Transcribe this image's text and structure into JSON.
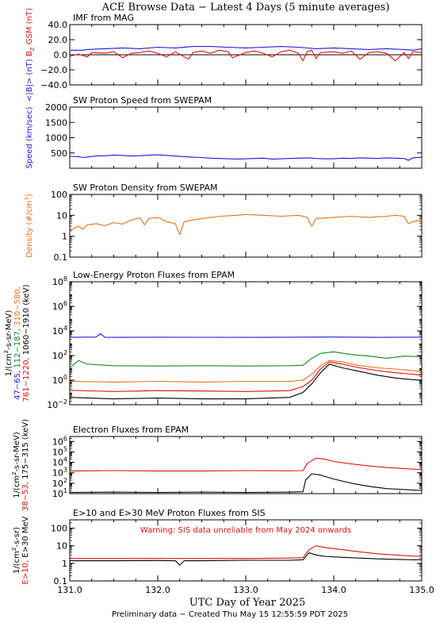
{
  "page": {
    "title": "ACE Browse Data − Latest 4 Days (5 minute averages)",
    "footer": "Preliminary data − Created Thu May 15 12:55:59 PDT 2025"
  },
  "colors": {
    "black": "#000000",
    "blue": "#1a1ad6",
    "red": "#e01010",
    "orange": "#e8701a",
    "green": "#108a20",
    "warning": "#e01010"
  },
  "chart_data": [
    {
      "id": "mag",
      "type": "line",
      "title": "IMF from MAG",
      "ylabel_parts": [
        {
          "text": "<|B|> (nT)",
          "color": "blue"
        },
        {
          "text": "B  GSM (nT)",
          "color": "red"
        }
      ],
      "ylabel_sub": "Z",
      "ylim": [
        -40,
        40
      ],
      "y_ticks": [
        -40,
        -20,
        0,
        20,
        40
      ],
      "y_tick_labels": [
        "−40.0",
        "−20.0",
        "0.0",
        "20.0",
        "40.0"
      ],
      "y_scale": "linear",
      "zero_line": true,
      "series": [
        {
          "color": "blue",
          "x": [
            131.0,
            131.15,
            131.2,
            131.4,
            131.6,
            131.8,
            132.0,
            132.2,
            132.4,
            132.6,
            132.8,
            133.0,
            133.2,
            133.4,
            133.6,
            133.8,
            134.0,
            134.2,
            134.4,
            134.6,
            134.8,
            134.9,
            135.0
          ],
          "y": [
            6,
            6,
            7,
            8,
            9,
            8,
            10,
            9,
            11,
            11,
            10,
            9,
            10,
            11,
            10,
            8,
            9,
            8,
            7,
            8,
            7,
            6,
            8
          ]
        },
        {
          "color": "red",
          "x": [
            131.0,
            131.1,
            131.2,
            131.25,
            131.4,
            131.5,
            131.6,
            131.7,
            131.8,
            131.9,
            132.0,
            132.1,
            132.2,
            132.35,
            132.4,
            132.5,
            132.6,
            132.7,
            132.8,
            132.85,
            133.0,
            133.1,
            133.2,
            133.3,
            133.4,
            133.5,
            133.6,
            133.65,
            133.7,
            133.75,
            133.8,
            133.85,
            134.0,
            134.1,
            134.2,
            134.3,
            134.4,
            134.5,
            134.6,
            134.7,
            134.8,
            134.85,
            134.9,
            135.0
          ],
          "y": [
            -2,
            1,
            -3,
            3,
            2,
            4,
            -4,
            2,
            3,
            5,
            2,
            -3,
            4,
            -6,
            3,
            5,
            2,
            6,
            4,
            -4,
            3,
            5,
            2,
            -3,
            4,
            6,
            2,
            -8,
            4,
            6,
            -5,
            3,
            4,
            2,
            5,
            -6,
            3,
            4,
            2,
            -8,
            3,
            -5,
            4,
            3
          ]
        }
      ]
    },
    {
      "id": "speed",
      "type": "line",
      "title": "SW Proton Speed from SWEPAM",
      "ylabel_parts": [
        {
          "text": "Speed (km/sec)",
          "color": "blue"
        }
      ],
      "ylim": [
        0,
        2000
      ],
      "y_ticks": [
        500,
        1000,
        1500,
        2000
      ],
      "y_tick_labels": [
        "500",
        "1000",
        "1500",
        "2000"
      ],
      "y_scale": "linear",
      "series": [
        {
          "color": "blue",
          "x": [
            131.0,
            131.1,
            131.15,
            131.2,
            131.3,
            131.4,
            131.5,
            131.6,
            131.7,
            131.8,
            131.9,
            132.0,
            132.1,
            132.2,
            132.3,
            132.4,
            132.5,
            132.6,
            132.7,
            132.8,
            132.9,
            133.0,
            133.1,
            133.2,
            133.3,
            133.4,
            133.5,
            133.6,
            133.7,
            133.8,
            133.9,
            134.0,
            134.1,
            134.2,
            134.3,
            134.4,
            134.5,
            134.6,
            134.7,
            134.8,
            134.85,
            134.9,
            135.0
          ],
          "y": [
            390,
            380,
            350,
            370,
            400,
            410,
            430,
            420,
            400,
            410,
            430,
            440,
            420,
            400,
            380,
            360,
            350,
            330,
            320,
            310,
            300,
            310,
            320,
            330,
            300,
            310,
            320,
            330,
            340,
            320,
            310,
            310,
            330,
            320,
            340,
            330,
            320,
            340,
            330,
            320,
            260,
            340,
            360
          ]
        }
      ]
    },
    {
      "id": "density",
      "type": "line",
      "title": "SW Proton Density from SWEPAM",
      "ylabel_parts": [
        {
          "text": "Density (#/cm )",
          "color": "orange"
        }
      ],
      "ylabel_sup": "3",
      "ylim": [
        0.1,
        100
      ],
      "y_ticks": [
        0.1,
        1,
        10,
        100
      ],
      "y_tick_labels": [
        "0.1",
        "1",
        "10",
        "100"
      ],
      "y_scale": "log",
      "series": [
        {
          "color": "orange",
          "x": [
            131.0,
            131.05,
            131.1,
            131.15,
            131.2,
            131.3,
            131.4,
            131.5,
            131.6,
            131.7,
            131.8,
            131.85,
            131.9,
            132.0,
            132.1,
            132.2,
            132.25,
            132.3,
            132.4,
            132.5,
            132.6,
            132.7,
            132.8,
            132.9,
            133.0,
            133.2,
            133.4,
            133.6,
            133.7,
            133.75,
            133.8,
            134.0,
            134.2,
            134.4,
            134.6,
            134.7,
            134.8,
            134.85,
            134.9,
            135.0
          ],
          "y": [
            1.5,
            2.5,
            3,
            2.2,
            3.5,
            4,
            3.2,
            4.5,
            3.8,
            6,
            7.5,
            3.5,
            7,
            8,
            5,
            4,
            1.2,
            5,
            6,
            7,
            8,
            9,
            9.5,
            10,
            11,
            10,
            9,
            10,
            8,
            3,
            7,
            8,
            9,
            8,
            9,
            10,
            9,
            4,
            5,
            6
          ]
        }
      ]
    },
    {
      "id": "protons",
      "type": "line",
      "title": "Low-Energy Proton Fluxes from EPAM",
      "ylabel_parts": [
        {
          "text": "1/(cm -s-sr-MeV)",
          "color": "black"
        }
      ],
      "ylabel_sup": "2",
      "channel_label_rows": [
        [
          {
            "text": "47−65,",
            "color": "blue"
          },
          {
            "text": "112−187,",
            "color": "green"
          },
          {
            "text": "310−580,",
            "color": "orange"
          }
        ],
        [
          {
            "text": "761−1220,",
            "color": "red"
          },
          {
            "text": "1060−1910 (keV)",
            "color": "black"
          }
        ]
      ],
      "ylim": [
        0.01,
        100000000
      ],
      "y_ticks": [
        0.01,
        1,
        100,
        10000,
        1000000,
        100000000
      ],
      "y_tick_labels": [
        {
          "b": "10",
          "e": "−2"
        },
        {
          "b": "10",
          "e": "0"
        },
        {
          "b": "10",
          "e": "2"
        },
        {
          "b": "10",
          "e": "4"
        },
        {
          "b": "10",
          "e": "6"
        },
        {
          "b": "10",
          "e": "8"
        }
      ],
      "y_scale": "log",
      "series": [
        {
          "color": "blue",
          "x": [
            131.0,
            131.3,
            131.35,
            131.4,
            132.0,
            132.5,
            133.0,
            133.5,
            134.0,
            134.5,
            135.0
          ],
          "y": [
            3000,
            3200,
            6000,
            3000,
            3100,
            3050,
            3000,
            3100,
            3200,
            3000,
            3100
          ]
        },
        {
          "color": "green",
          "x": [
            131.0,
            131.1,
            131.2,
            131.5,
            132.0,
            132.5,
            133.0,
            133.5,
            133.65,
            133.75,
            133.85,
            134.0,
            134.2,
            134.4,
            134.6,
            134.8,
            135.0
          ],
          "y": [
            10,
            40,
            20,
            15,
            14,
            15,
            14,
            15,
            16,
            60,
            150,
            200,
            120,
            90,
            60,
            90,
            80
          ]
        },
        {
          "color": "orange",
          "x": [
            131.0,
            131.5,
            132.0,
            132.5,
            133.0,
            133.5,
            133.65,
            133.75,
            133.85,
            133.95,
            134.1,
            134.3,
            134.5,
            134.7,
            134.9,
            135.0
          ],
          "y": [
            0.8,
            0.7,
            0.8,
            0.7,
            0.8,
            0.8,
            1,
            3,
            15,
            40,
            30,
            15,
            10,
            8,
            6,
            5
          ]
        },
        {
          "color": "red",
          "x": [
            131.0,
            131.5,
            132.0,
            132.5,
            133.0,
            133.5,
            133.65,
            133.75,
            133.85,
            133.95,
            134.1,
            134.3,
            134.5,
            134.7,
            134.9,
            135.0
          ],
          "y": [
            0.15,
            0.12,
            0.14,
            0.13,
            0.12,
            0.14,
            0.3,
            1,
            8,
            30,
            20,
            10,
            6,
            4,
            3,
            2.5
          ]
        },
        {
          "color": "black",
          "x": [
            131.0,
            131.5,
            132.0,
            132.5,
            133.0,
            133.5,
            133.65,
            133.75,
            133.85,
            133.95,
            134.1,
            134.3,
            134.5,
            134.7,
            134.9,
            135.0
          ],
          "y": [
            0.04,
            0.03,
            0.035,
            0.03,
            0.03,
            0.04,
            0.1,
            0.5,
            4,
            20,
            10,
            5,
            2.5,
            1.5,
            1.1,
            1
          ]
        }
      ]
    },
    {
      "id": "electrons",
      "type": "line",
      "title": "Electron Fluxes from EPAM",
      "ylabel_parts": [
        {
          "text": "1/(cm -s-sr-MeV)",
          "color": "black"
        }
      ],
      "ylabel_sup": "2",
      "channel_label_rows": [
        [
          {
            "text": "38−53,",
            "color": "red"
          },
          {
            "text": "175−315 (keV)",
            "color": "black"
          }
        ]
      ],
      "ylim": [
        10,
        3000000
      ],
      "y_ticks": [
        10,
        100,
        1000,
        10000,
        100000,
        1000000
      ],
      "y_tick_labels": [
        {
          "b": "10",
          "e": "1"
        },
        {
          "b": "10",
          "e": "2"
        },
        {
          "b": "10",
          "e": "3"
        },
        {
          "b": "10",
          "e": "4"
        },
        {
          "b": "10",
          "e": "5"
        },
        {
          "b": "10",
          "e": "6"
        }
      ],
      "y_scale": "log",
      "series": [
        {
          "color": "red",
          "x": [
            131.0,
            131.5,
            132.0,
            132.5,
            133.0,
            133.5,
            133.65,
            133.7,
            133.8,
            133.9,
            134.0,
            134.2,
            134.4,
            134.6,
            134.8,
            135.0
          ],
          "y": [
            1500,
            1600,
            1500,
            1500,
            1600,
            1550,
            1600,
            8000,
            25000,
            20000,
            12000,
            7000,
            4500,
            3200,
            2500,
            2000
          ]
        },
        {
          "color": "black",
          "x": [
            131.0,
            131.5,
            132.0,
            132.5,
            133.0,
            133.5,
            133.65,
            133.68,
            133.75,
            133.85,
            134.0,
            134.2,
            134.4,
            134.6,
            134.8,
            135.0
          ],
          "y": [
            13,
            14,
            13,
            14,
            13,
            14,
            15,
            200,
            800,
            600,
            250,
            100,
            50,
            30,
            25,
            20
          ]
        }
      ]
    },
    {
      "id": "sis",
      "type": "line",
      "title": "E>10 and E>30 MeV Proton Fluxes from SIS",
      "ylabel_parts": [
        {
          "text": "1/(cm -s-sr)",
          "color": "black"
        }
      ],
      "ylabel_sup": "2",
      "channel_label_rows": [
        [
          {
            "text": "E>10,",
            "color": "red"
          },
          {
            "text": "E>30 MeV",
            "color": "black"
          }
        ]
      ],
      "annotation": "Warning: SIS data unreliable from May 2024 onwards",
      "ylim": [
        0.1,
        300
      ],
      "y_ticks": [
        0.1,
        1,
        10,
        100
      ],
      "y_tick_labels": [
        "0.1",
        "1",
        "10",
        "100"
      ],
      "y_scale": "log",
      "series": [
        {
          "color": "red",
          "x": [
            131.0,
            131.5,
            132.0,
            132.5,
            133.0,
            133.5,
            133.65,
            133.72,
            133.8,
            133.9,
            134.1,
            134.3,
            134.5,
            134.7,
            134.9,
            135.0
          ],
          "y": [
            1.9,
            1.9,
            1.9,
            1.9,
            1.9,
            2.0,
            2.1,
            6,
            10,
            8,
            6,
            4.5,
            3.5,
            3,
            2.6,
            2.5
          ]
        },
        {
          "color": "black",
          "x": [
            131.0,
            131.5,
            132.0,
            132.2,
            132.25,
            132.3,
            132.5,
            133.0,
            133.5,
            133.65,
            133.72,
            133.8,
            133.9,
            134.1,
            134.3,
            134.5,
            134.7,
            134.9,
            135.0
          ],
          "y": [
            1.4,
            1.4,
            1.45,
            1.4,
            0.8,
            1.4,
            1.4,
            1.5,
            1.5,
            1.6,
            4,
            3,
            2.5,
            2.2,
            2,
            1.8,
            1.7,
            1.6,
            1.6
          ]
        }
      ]
    }
  ],
  "x_axis": {
    "title": "UTC Day of Year 2025",
    "range": [
      131.0,
      135.0
    ],
    "ticks": [
      131.0,
      132.0,
      133.0,
      134.0,
      135.0
    ],
    "tick_labels": [
      "131.0",
      "132.0",
      "133.0",
      "134.0",
      "135.0"
    ]
  }
}
